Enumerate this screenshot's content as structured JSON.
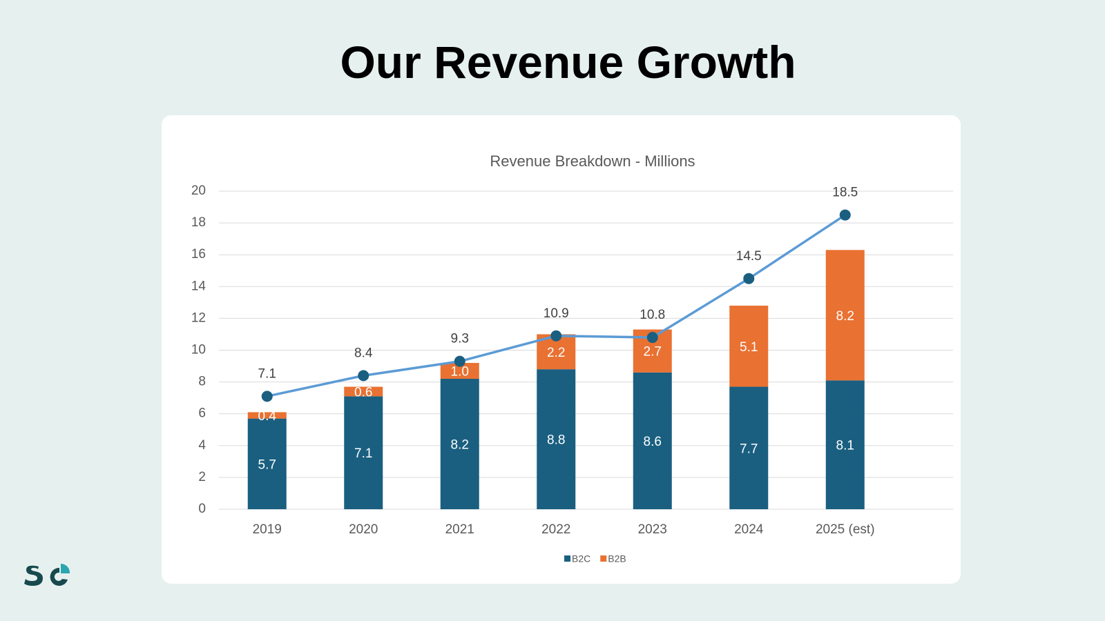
{
  "title": "Our Revenue Growth",
  "chart_data": {
    "type": "bar",
    "stacked": true,
    "title": "Revenue Breakdown - Millions",
    "categories": [
      "2019",
      "2020",
      "2021",
      "2022",
      "2023",
      "2024",
      "2025 (est)"
    ],
    "series": [
      {
        "name": "B2C",
        "color": "#1a5f80",
        "values": [
          5.7,
          7.1,
          8.2,
          8.8,
          8.6,
          7.7,
          8.1
        ],
        "value_labels": [
          "5.7",
          "7.1",
          "8.2",
          "8.8",
          "8.6",
          "7.7",
          "8.1"
        ]
      },
      {
        "name": "B2B",
        "color": "#e97132",
        "values": [
          0.4,
          0.6,
          1.0,
          2.2,
          2.7,
          5.1,
          8.2
        ],
        "value_labels": [
          "0.4",
          "0.6",
          "1.0",
          "2.2",
          "2.7",
          "5.1",
          "8.2"
        ]
      }
    ],
    "line": {
      "type": "line",
      "color": "#5b9bd5",
      "marker_color": "#1a5f80",
      "values": [
        7.1,
        8.4,
        9.3,
        10.9,
        10.8,
        14.5,
        18.5
      ]
    },
    "ylim": [
      0,
      20
    ],
    "yticks": [
      0,
      2,
      4,
      6,
      8,
      10,
      12,
      14,
      16,
      18,
      20
    ],
    "grid": true,
    "legend": "bottom"
  }
}
